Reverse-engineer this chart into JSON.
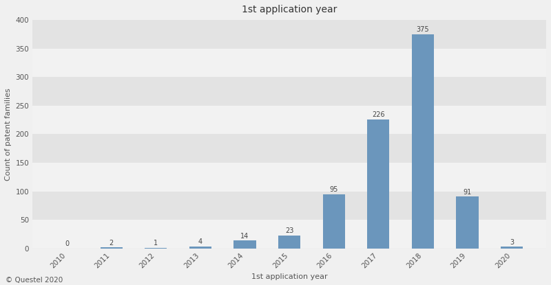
{
  "title": "1st application year",
  "xlabel": "1st application year",
  "ylabel": "Count of patent families",
  "categories": [
    "2010",
    "2011",
    "2012",
    "2013",
    "2014",
    "2015",
    "2016",
    "2017",
    "2018",
    "2019",
    "2020"
  ],
  "values": [
    0,
    2,
    1,
    4,
    14,
    23,
    95,
    226,
    375,
    91,
    3
  ],
  "bar_color": "#6b96bc",
  "ylim": [
    0,
    400
  ],
  "yticks": [
    0,
    50,
    100,
    150,
    200,
    250,
    300,
    350,
    400
  ],
  "stripe_colors": [
    "#f2f2f2",
    "#e3e3e3"
  ],
  "annotation_fontsize": 7,
  "title_fontsize": 10,
  "label_fontsize": 8,
  "tick_fontsize": 7.5,
  "footer": "© Questel 2020",
  "fig_bg": "#f0f0f0"
}
